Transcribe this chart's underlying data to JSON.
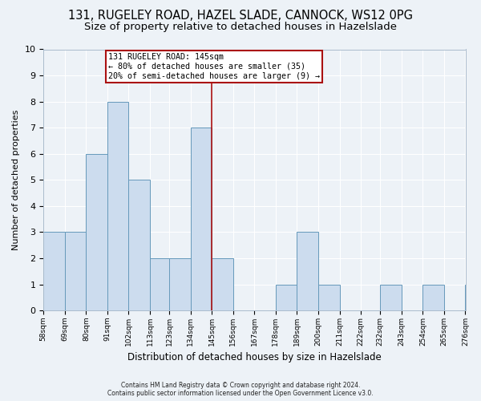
{
  "title1": "131, RUGELEY ROAD, HAZEL SLADE, CANNOCK, WS12 0PG",
  "title2": "Size of property relative to detached houses in Hazelslade",
  "xlabel": "Distribution of detached houses by size in Hazelslade",
  "ylabel": "Number of detached properties",
  "bin_edges": [
    58,
    69,
    80,
    91,
    102,
    113,
    123,
    134,
    145,
    156,
    167,
    178,
    189,
    200,
    211,
    222,
    232,
    243,
    254,
    265,
    276
  ],
  "counts": [
    3,
    3,
    6,
    8,
    5,
    2,
    2,
    7,
    2,
    0,
    0,
    1,
    3,
    1,
    0,
    0,
    1,
    0,
    1,
    0,
    1
  ],
  "bar_color": "#ccdcee",
  "bar_edge_color": "#6699bb",
  "ref_line_x": 145,
  "ref_line_color": "#aa1111",
  "ylim": [
    0,
    10
  ],
  "yticks": [
    0,
    1,
    2,
    3,
    4,
    5,
    6,
    7,
    8,
    9,
    10
  ],
  "annotation_title": "131 RUGELEY ROAD: 145sqm",
  "annotation_line1": "← 80% of detached houses are smaller (35)",
  "annotation_line2": "20% of semi-detached houses are larger (9) →",
  "annotation_box_color": "#ffffff",
  "annotation_border_color": "#aa1111",
  "footnote1": "Contains HM Land Registry data © Crown copyright and database right 2024.",
  "footnote2": "Contains public sector information licensed under the Open Government Licence v3.0.",
  "bg_color": "#edf2f7",
  "grid_color": "#ffffff",
  "title1_fontsize": 10.5,
  "title2_fontsize": 9.5
}
